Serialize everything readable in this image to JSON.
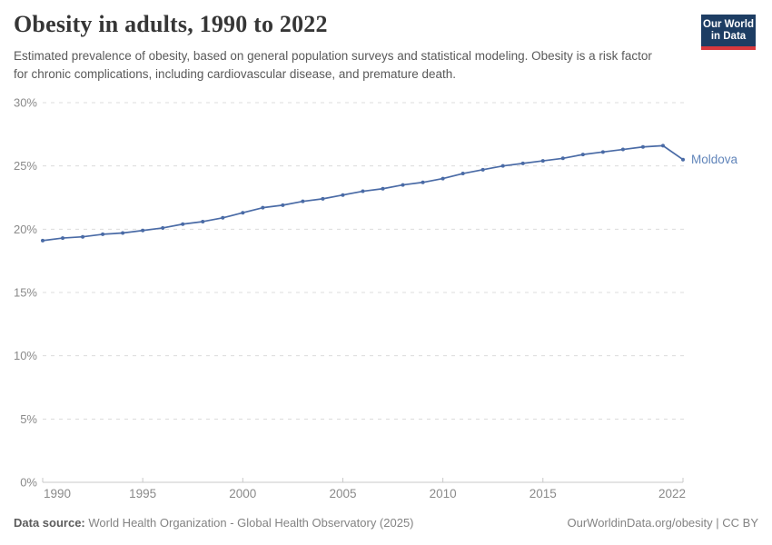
{
  "header": {
    "title": "Obesity in adults, 1990 to 2022",
    "subtitle": "Estimated prevalence of obesity, based on general population surveys and statistical modeling. Obesity is a risk factor for chronic complications, including cardiovascular disease, and premature death."
  },
  "logo": {
    "line1": "Our World",
    "line2": "in Data",
    "bg_color": "#1d3d63",
    "accent_color": "#d8383d"
  },
  "chart_data": {
    "type": "line",
    "title": "Obesity in adults, 1990 to 2022",
    "xlabel": "",
    "ylabel": "",
    "ylim": [
      0,
      30
    ],
    "xlim": [
      1990,
      2022
    ],
    "grid": "horizontal-dashed",
    "legend_position": "end-of-line-label",
    "y_ticks": [
      {
        "value": 0,
        "label": "0%"
      },
      {
        "value": 5,
        "label": "5%"
      },
      {
        "value": 10,
        "label": "10%"
      },
      {
        "value": 15,
        "label": "15%"
      },
      {
        "value": 20,
        "label": "20%"
      },
      {
        "value": 25,
        "label": "25%"
      },
      {
        "value": 30,
        "label": "30%"
      }
    ],
    "x_ticks": [
      {
        "value": 1990,
        "label": "1990"
      },
      {
        "value": 1995,
        "label": "1995"
      },
      {
        "value": 2000,
        "label": "2000"
      },
      {
        "value": 2005,
        "label": "2005"
      },
      {
        "value": 2010,
        "label": "2010"
      },
      {
        "value": 2015,
        "label": "2015"
      },
      {
        "value": 2022,
        "label": "2022"
      }
    ],
    "series": [
      {
        "name": "Moldova",
        "color": "#4a6ba6",
        "label_color": "#6185ba",
        "x": [
          1990,
          1991,
          1992,
          1993,
          1994,
          1995,
          1996,
          1997,
          1998,
          1999,
          2000,
          2001,
          2002,
          2003,
          2004,
          2005,
          2006,
          2007,
          2008,
          2009,
          2010,
          2011,
          2012,
          2013,
          2014,
          2015,
          2016,
          2017,
          2018,
          2019,
          2020,
          2021,
          2022
        ],
        "values": [
          19.1,
          19.3,
          19.4,
          19.6,
          19.7,
          19.9,
          20.1,
          20.4,
          20.6,
          20.9,
          21.3,
          21.7,
          21.9,
          22.2,
          22.4,
          22.7,
          23.0,
          23.2,
          23.5,
          23.7,
          24.0,
          24.4,
          24.7,
          25.0,
          25.2,
          25.4,
          25.6,
          25.9,
          26.1,
          26.3,
          26.5,
          26.6,
          25.5
        ]
      }
    ],
    "axis_color": "#c9c9c9",
    "grid_color": "#dcdcdc",
    "tick_label_color": "#8a8a8a"
  },
  "footer": {
    "datasource_label": "Data source:",
    "datasource_text": " World Health Organization - Global Health Observatory (2025)",
    "credit": "OurWorldinData.org/obesity | CC BY"
  }
}
